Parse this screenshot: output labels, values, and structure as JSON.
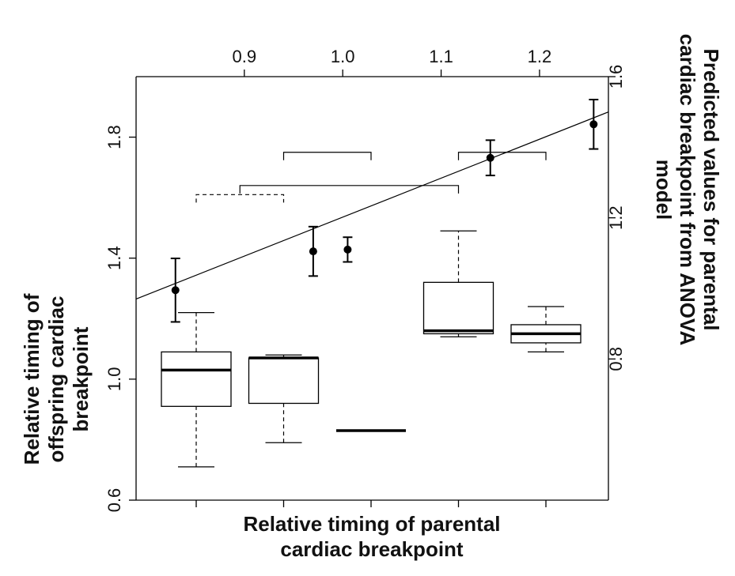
{
  "chart_data": {
    "type": "box",
    "title": "",
    "xlabel": "Relative timing of parental cardiac breakpoint",
    "ylabel": "Relative timing of offspring cardiac breakpoint",
    "ylim": [
      0.6,
      2.0
    ],
    "yticks": [
      0.6,
      1.0,
      1.4,
      1.8
    ],
    "grid": false,
    "groups": [
      {
        "whisker_low": 0.71,
        "q1": 0.91,
        "median": 1.03,
        "q3": 1.09,
        "whisker_high": 1.22
      },
      {
        "whisker_low": 0.79,
        "q1": 0.92,
        "median": 1.07,
        "q3": 1.07,
        "whisker_high": 1.08
      },
      {
        "whisker_low": 0.83,
        "q1": 0.83,
        "median": 0.83,
        "q3": 0.83,
        "whisker_high": 0.83
      },
      {
        "whisker_low": 1.14,
        "q1": 1.15,
        "median": 1.16,
        "q3": 1.32,
        "whisker_high": 1.49
      },
      {
        "whisker_low": 1.09,
        "q1": 1.12,
        "median": 1.15,
        "q3": 1.18,
        "whisker_high": 1.24
      }
    ],
    "brackets": [
      {
        "from": 1,
        "to": 2,
        "y": 1.61,
        "style": "dashed"
      },
      {
        "from": 1.5,
        "to": 4,
        "y": 1.64,
        "style": "solid"
      },
      {
        "from": 2,
        "to": 3,
        "y": 1.75,
        "style": "solid"
      },
      {
        "from": 4,
        "to": 5,
        "y": 1.75,
        "style": "solid"
      }
    ],
    "overlay": {
      "type": "scatter",
      "xlabel": "",
      "ylabel": "Predicted values for parental cardiac breakpoint from ANOVA model",
      "xlim": [
        0.79,
        1.27
      ],
      "xticks": [
        0.9,
        1.0,
        1.1,
        1.2
      ],
      "ylim": [
        0.4,
        1.6
      ],
      "yticks": [
        0.8,
        1.2,
        1.6
      ],
      "points": [
        {
          "x": 0.83,
          "y": 0.995,
          "err": 0.09
        },
        {
          "x": 0.97,
          "y": 1.105,
          "err": 0.07
        },
        {
          "x": 1.005,
          "y": 1.11,
          "err": 0.035
        },
        {
          "x": 1.15,
          "y": 1.37,
          "err": 0.05
        },
        {
          "x": 1.255,
          "y": 1.465,
          "err": 0.07
        }
      ],
      "fit_line": {
        "x": [
          0.79,
          1.27
        ],
        "y": [
          0.97,
          1.5
        ]
      }
    }
  }
}
